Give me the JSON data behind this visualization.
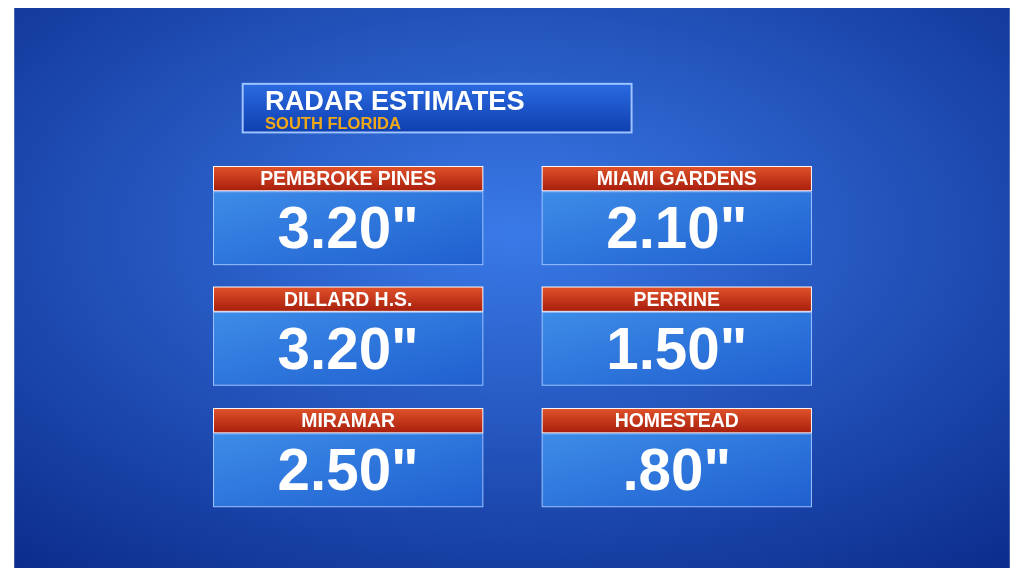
{
  "chart_data": {
    "type": "other",
    "title": "RADAR ESTIMATES",
    "subtitle": "SOUTH FLORIDA",
    "categories": [
      "PEMBROKE PINES",
      "MIAMI GARDENS",
      "DILLARD H.S.",
      "PERRINE",
      "MIRAMAR",
      "HOMESTEAD"
    ],
    "values": [
      3.2,
      2.1,
      3.2,
      1.5,
      2.5,
      0.8
    ],
    "value_labels": [
      "3.20\"",
      "2.10\"",
      "3.20\"",
      "1.50\"",
      "2.50\"",
      ".80\""
    ]
  }
}
